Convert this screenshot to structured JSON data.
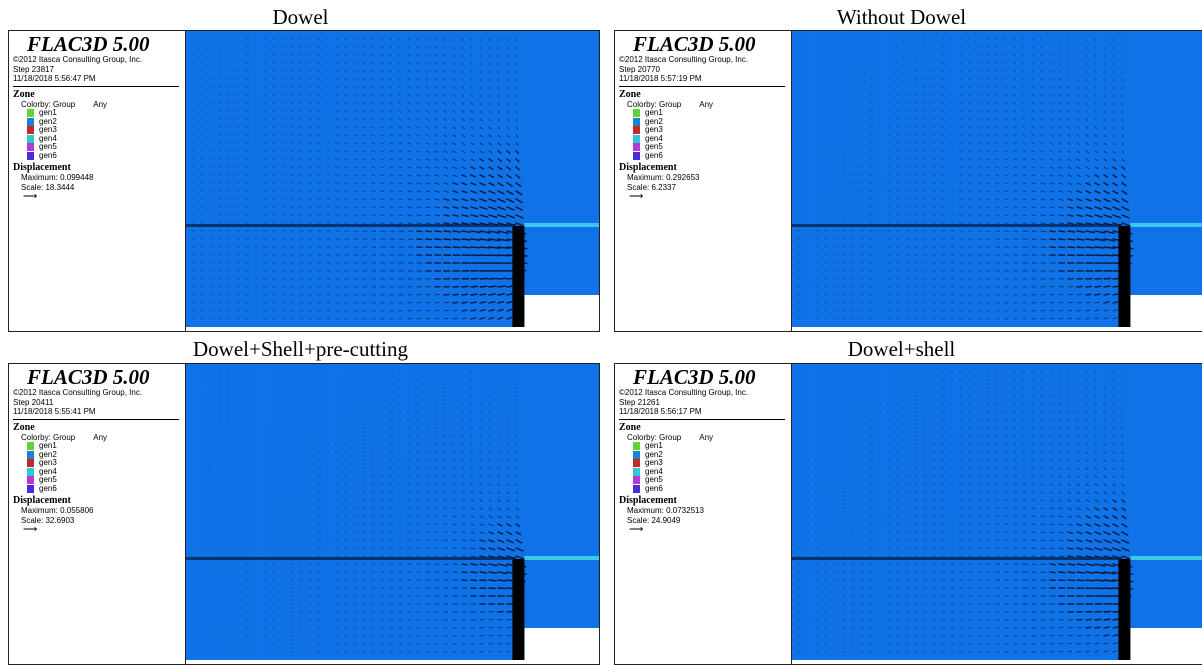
{
  "panels": [
    {
      "caption": "Dowel",
      "app": "FLAC3D 5.00",
      "copyright": "©2012 Itasca Consulting Group, Inc.",
      "step": "Step 23817",
      "datetime": "11/18/2018 5:56:47 PM",
      "zone_label": "Zone",
      "colorby": "Colorby: Group",
      "colorby_value": "Any",
      "groups": [
        "gen1",
        "gen2",
        "gen3",
        "gen4",
        "gen5",
        "gen6"
      ],
      "displacement_label": "Displacement",
      "maximum": "Maximum: 0.099448",
      "scale": "Scale: 18.3444",
      "tunnel_width": 0.2,
      "intensity": 0.55
    },
    {
      "caption": "Without Dowel",
      "app": "FLAC3D 5.00",
      "copyright": "©2012 Itasca Consulting Group, Inc.",
      "step": "Step 20770",
      "datetime": "11/18/2018 5:57:19 PM",
      "zone_label": "Zone",
      "colorby": "Colorby: Group",
      "colorby_value": "Any",
      "groups": [
        "gen1",
        "gen2",
        "gen3",
        "gen4",
        "gen5",
        "gen6"
      ],
      "displacement_label": "Displacement",
      "maximum": "Maximum: 0.292653",
      "scale": "Scale: 6.2337",
      "tunnel_width": 0.2,
      "intensity": 0.45
    },
    {
      "caption": "Dowel+Shell+pre-cutting",
      "app": "FLAC3D 5.00",
      "copyright": "©2012 Itasca Consulting Group, Inc.",
      "step": "Step 20411",
      "datetime": "11/18/2018 5:55:41 PM",
      "zone_label": "Zone",
      "colorby": "Colorby: Group",
      "colorby_value": "Any",
      "groups": [
        "gen1",
        "gen2",
        "gen3",
        "gen4",
        "gen5",
        "gen6"
      ],
      "displacement_label": "Displacement",
      "maximum": "Maximum: 0.055806",
      "scale": "Scale: 32.6903",
      "tunnel_width": 0.2,
      "intensity": 0.35
    },
    {
      "caption": "Dowel+shell",
      "app": "FLAC3D 5.00",
      "copyright": "©2012 Itasca Consulting Group, Inc.",
      "step": "Step 21261",
      "datetime": "11/18/2018 5:56:17 PM",
      "zone_label": "Zone",
      "colorby": "Colorby: Group",
      "colorby_value": "Any",
      "groups": [
        "gen1",
        "gen2",
        "gen3",
        "gen4",
        "gen5",
        "gen6"
      ],
      "displacement_label": "Displacement",
      "maximum": "Maximum: 0.0732513",
      "scale": "Scale: 24.9049",
      "tunnel_width": 0.2,
      "intensity": 0.45
    }
  ],
  "group_colors": [
    "#5fd43a",
    "#1f7fd0",
    "#c22a2a",
    "#2ec9d0",
    "#b33ad2",
    "#4a2bd6"
  ],
  "colors": {
    "rock": "#0f72e6",
    "tunnel": "#ffffff",
    "vectors": "#08183a",
    "lining": "#7a3fd0"
  }
}
